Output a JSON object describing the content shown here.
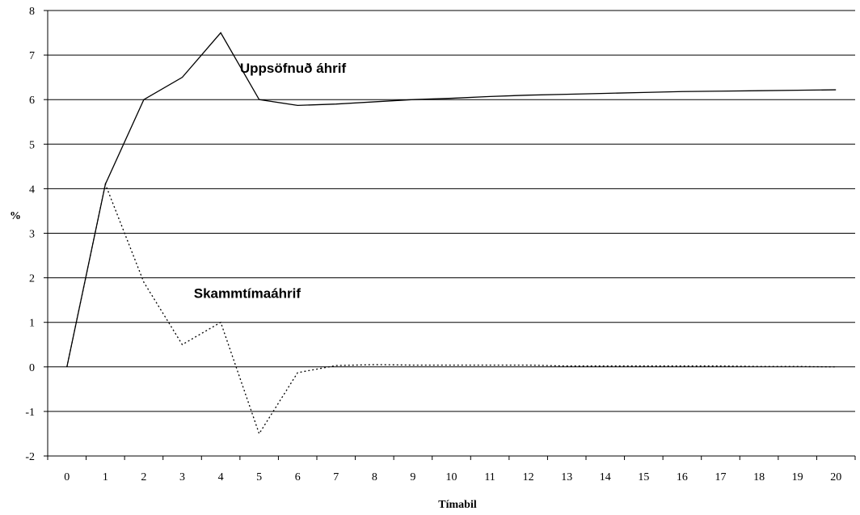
{
  "chart_data": {
    "type": "line",
    "xlabel": "Tímabil",
    "ylabel": "%",
    "xlim": [
      0,
      20
    ],
    "ylim": [
      -2,
      8
    ],
    "yticks": [
      -2,
      -1,
      0,
      1,
      2,
      3,
      4,
      5,
      6,
      7,
      8
    ],
    "x": [
      0,
      1,
      2,
      3,
      4,
      5,
      6,
      7,
      8,
      9,
      10,
      11,
      12,
      13,
      14,
      15,
      16,
      17,
      18,
      19,
      20
    ],
    "grid": "horizontal",
    "legend": "none",
    "series": [
      {
        "name": "Uppsöfnuð áhrif",
        "style": "solid",
        "color": "#000000",
        "values": [
          0,
          4.1,
          6.0,
          6.5,
          7.5,
          6.0,
          5.87,
          5.9,
          5.95,
          6.0,
          6.03,
          6.07,
          6.1,
          6.12,
          6.14,
          6.16,
          6.18,
          6.19,
          6.2,
          6.21,
          6.22
        ]
      },
      {
        "name": "Skammtímaáhrif",
        "style": "dotted",
        "color": "#000000",
        "values": [
          0,
          4.1,
          1.9,
          0.5,
          1.0,
          -1.5,
          -0.13,
          0.03,
          0.05,
          0.04,
          0.04,
          0.04,
          0.04,
          0.02,
          0.02,
          0.02,
          0.02,
          0.02,
          0.01,
          0.01,
          0.0
        ]
      }
    ],
    "annotations": [
      {
        "text": "Uppsöfnuð áhrif",
        "series": 0,
        "near_x": 4.5,
        "near_y": 6.6
      },
      {
        "text": "Skammtímaáhrif",
        "series": 1,
        "near_x": 3.3,
        "near_y": 1.55
      }
    ]
  }
}
